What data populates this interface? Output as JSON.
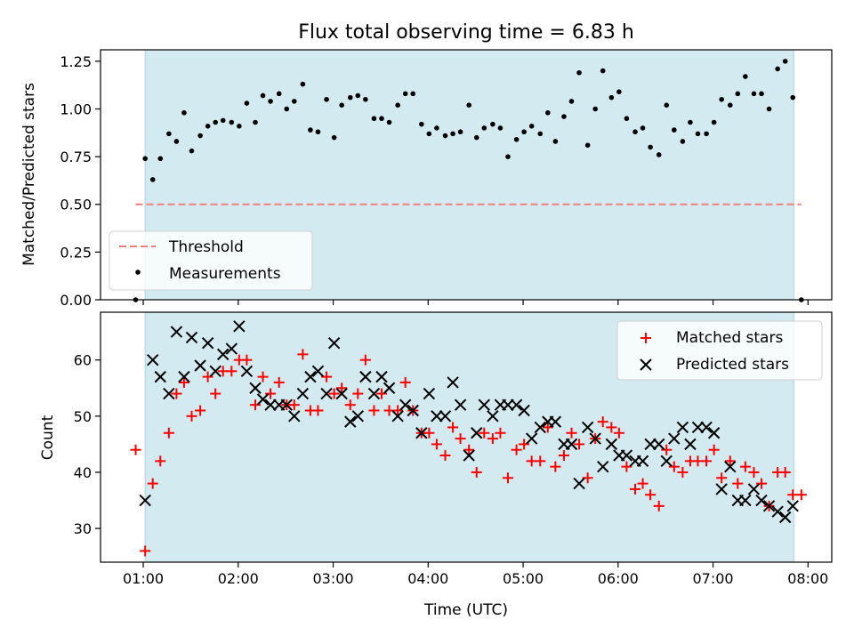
{
  "chart_data": [
    {
      "type": "scatter",
      "title": "Flux total observing time = 6.83 h",
      "xlabel": "",
      "ylabel": "Matched/Predicted stars",
      "xlim": [
        0.55,
        8.25
      ],
      "ylim": [
        0,
        1.31
      ],
      "yticks": [
        0,
        0.25,
        0.5,
        0.75,
        1.0,
        1.25
      ],
      "ytick_labels": [
        "0.00",
        "0.25",
        "0.50",
        "0.75",
        "1.00",
        "1.25"
      ],
      "shaded_span": [
        1.02,
        7.85
      ],
      "threshold": {
        "label": "Threshold",
        "y": 0.5,
        "x_range": [
          0.92,
          7.93
        ],
        "color": "#f08080"
      },
      "series": [
        {
          "name": "Measurements",
          "color": "#000000",
          "points": [
            [
              0.92,
              0.0
            ],
            [
              1.02,
              0.74
            ],
            [
              1.1,
              0.63
            ],
            [
              1.18,
              0.74
            ],
            [
              1.27,
              0.87
            ],
            [
              1.35,
              0.83
            ],
            [
              1.43,
              0.98
            ],
            [
              1.51,
              0.78
            ],
            [
              1.6,
              0.86
            ],
            [
              1.68,
              0.91
            ],
            [
              1.76,
              0.93
            ],
            [
              1.84,
              0.94
            ],
            [
              1.93,
              0.93
            ],
            [
              2.01,
              0.91
            ],
            [
              2.09,
              1.03
            ],
            [
              2.18,
              0.93
            ],
            [
              2.26,
              1.07
            ],
            [
              2.34,
              1.04
            ],
            [
              2.43,
              1.08
            ],
            [
              2.51,
              1.0
            ],
            [
              2.59,
              1.04
            ],
            [
              2.68,
              1.13
            ],
            [
              2.76,
              0.89
            ],
            [
              2.84,
              0.88
            ],
            [
              2.93,
              1.05
            ],
            [
              3.01,
              0.85
            ],
            [
              3.09,
              1.02
            ],
            [
              3.18,
              1.06
            ],
            [
              3.26,
              1.07
            ],
            [
              3.34,
              1.05
            ],
            [
              3.43,
              0.95
            ],
            [
              3.51,
              0.95
            ],
            [
              3.59,
              0.93
            ],
            [
              3.68,
              1.02
            ],
            [
              3.76,
              1.08
            ],
            [
              3.84,
              1.08
            ],
            [
              3.93,
              0.92
            ],
            [
              4.01,
              0.87
            ],
            [
              4.09,
              0.9
            ],
            [
              4.18,
              0.86
            ],
            [
              4.26,
              0.87
            ],
            [
              4.34,
              0.88
            ],
            [
              4.43,
              1.02
            ],
            [
              4.51,
              0.85
            ],
            [
              4.59,
              0.9
            ],
            [
              4.68,
              0.92
            ],
            [
              4.76,
              0.9
            ],
            [
              4.84,
              0.75
            ],
            [
              4.93,
              0.84
            ],
            [
              5.01,
              0.88
            ],
            [
              5.09,
              0.91
            ],
            [
              5.18,
              0.87
            ],
            [
              5.26,
              0.98
            ],
            [
              5.34,
              0.83
            ],
            [
              5.43,
              0.96
            ],
            [
              5.51,
              1.04
            ],
            [
              5.59,
              1.19
            ],
            [
              5.68,
              0.81
            ],
            [
              5.76,
              1.0
            ],
            [
              5.84,
              1.2
            ],
            [
              5.93,
              1.06
            ],
            [
              6.01,
              1.09
            ],
            [
              6.09,
              0.95
            ],
            [
              6.18,
              0.88
            ],
            [
              6.26,
              0.9
            ],
            [
              6.34,
              0.8
            ],
            [
              6.43,
              0.76
            ],
            [
              6.51,
              1.02
            ],
            [
              6.59,
              0.89
            ],
            [
              6.68,
              0.83
            ],
            [
              6.76,
              0.93
            ],
            [
              6.84,
              0.87
            ],
            [
              6.93,
              0.87
            ],
            [
              7.01,
              0.93
            ],
            [
              7.09,
              1.05
            ],
            [
              7.18,
              1.02
            ],
            [
              7.26,
              1.08
            ],
            [
              7.34,
              1.17
            ],
            [
              7.43,
              1.08
            ],
            [
              7.51,
              1.08
            ],
            [
              7.59,
              1.0
            ],
            [
              7.68,
              1.21
            ],
            [
              7.76,
              1.25
            ],
            [
              7.84,
              1.06
            ],
            [
              7.93,
              0.0
            ]
          ]
        }
      ],
      "legend": [
        "Threshold",
        "Measurements"
      ],
      "legend_position": "lower-left"
    },
    {
      "type": "scatter",
      "title": "",
      "xlabel": "Time (UTC)",
      "ylabel": "Count",
      "xlim": [
        0.55,
        8.25
      ],
      "ylim": [
        24,
        68.5
      ],
      "xticks": [
        1,
        2,
        3,
        4,
        5,
        6,
        7,
        8
      ],
      "xtick_labels": [
        "01:00",
        "02:00",
        "03:00",
        "04:00",
        "05:00",
        "06:00",
        "07:00",
        "08:00"
      ],
      "yticks": [
        30,
        40,
        50,
        60
      ],
      "ytick_labels": [
        "30",
        "40",
        "50",
        "60"
      ],
      "shaded_span": [
        1.02,
        7.85
      ],
      "series": [
        {
          "name": "Matched stars",
          "marker": "+",
          "color": "#ff0000",
          "points": [
            [
              0.92,
              44
            ],
            [
              1.02,
              26
            ],
            [
              1.1,
              38
            ],
            [
              1.18,
              42
            ],
            [
              1.27,
              47
            ],
            [
              1.35,
              54
            ],
            [
              1.43,
              56
            ],
            [
              1.51,
              50
            ],
            [
              1.6,
              51
            ],
            [
              1.68,
              57
            ],
            [
              1.76,
              54
            ],
            [
              1.84,
              58
            ],
            [
              1.93,
              58
            ],
            [
              2.01,
              60
            ],
            [
              2.09,
              60
            ],
            [
              2.18,
              52
            ],
            [
              2.26,
              57
            ],
            [
              2.34,
              54
            ],
            [
              2.43,
              56
            ],
            [
              2.51,
              52
            ],
            [
              2.59,
              52
            ],
            [
              2.68,
              61
            ],
            [
              2.76,
              51
            ],
            [
              2.84,
              51
            ],
            [
              2.93,
              57
            ],
            [
              3.01,
              54
            ],
            [
              3.09,
              55
            ],
            [
              3.18,
              52
            ],
            [
              3.26,
              54
            ],
            [
              3.34,
              60
            ],
            [
              3.43,
              51
            ],
            [
              3.51,
              54
            ],
            [
              3.59,
              51
            ],
            [
              3.68,
              51
            ],
            [
              3.76,
              56
            ],
            [
              3.84,
              51
            ],
            [
              3.93,
              47
            ],
            [
              4.01,
              47
            ],
            [
              4.09,
              45
            ],
            [
              4.18,
              43
            ],
            [
              4.26,
              48
            ],
            [
              4.34,
              46
            ],
            [
              4.43,
              44
            ],
            [
              4.51,
              40
            ],
            [
              4.59,
              47
            ],
            [
              4.68,
              46
            ],
            [
              4.76,
              47
            ],
            [
              4.84,
              39
            ],
            [
              4.93,
              44
            ],
            [
              5.01,
              45
            ],
            [
              5.09,
              42
            ],
            [
              5.18,
              42
            ],
            [
              5.26,
              48
            ],
            [
              5.34,
              41
            ],
            [
              5.43,
              43
            ],
            [
              5.51,
              47
            ],
            [
              5.59,
              45
            ],
            [
              5.68,
              39
            ],
            [
              5.76,
              46
            ],
            [
              5.84,
              49
            ],
            [
              5.93,
              48
            ],
            [
              6.01,
              47
            ],
            [
              6.09,
              41
            ],
            [
              6.18,
              37
            ],
            [
              6.26,
              38
            ],
            [
              6.34,
              36
            ],
            [
              6.43,
              34
            ],
            [
              6.51,
              44
            ],
            [
              6.59,
              41
            ],
            [
              6.68,
              40
            ],
            [
              6.76,
              42
            ],
            [
              6.84,
              42
            ],
            [
              6.93,
              42
            ],
            [
              7.01,
              44
            ],
            [
              7.09,
              39
            ],
            [
              7.18,
              42
            ],
            [
              7.26,
              38
            ],
            [
              7.34,
              41
            ],
            [
              7.43,
              40
            ],
            [
              7.51,
              38
            ],
            [
              7.59,
              34
            ],
            [
              7.68,
              40
            ],
            [
              7.76,
              40
            ],
            [
              7.84,
              36
            ],
            [
              7.93,
              36
            ]
          ]
        },
        {
          "name": "Predicted stars",
          "marker": "x",
          "color": "#000000",
          "points": [
            [
              1.02,
              35
            ],
            [
              1.1,
              60
            ],
            [
              1.18,
              57
            ],
            [
              1.27,
              54
            ],
            [
              1.35,
              65
            ],
            [
              1.43,
              57
            ],
            [
              1.51,
              64
            ],
            [
              1.6,
              59
            ],
            [
              1.68,
              63
            ],
            [
              1.76,
              58
            ],
            [
              1.84,
              61
            ],
            [
              1.93,
              62
            ],
            [
              2.01,
              66
            ],
            [
              2.09,
              58
            ],
            [
              2.18,
              55
            ],
            [
              2.26,
              53
            ],
            [
              2.34,
              52
            ],
            [
              2.43,
              52
            ],
            [
              2.51,
              52
            ],
            [
              2.59,
              50
            ],
            [
              2.68,
              54
            ],
            [
              2.76,
              57
            ],
            [
              2.84,
              58
            ],
            [
              2.93,
              54
            ],
            [
              3.01,
              63
            ],
            [
              3.09,
              54
            ],
            [
              3.18,
              49
            ],
            [
              3.26,
              50
            ],
            [
              3.34,
              57
            ],
            [
              3.43,
              54
            ],
            [
              3.51,
              57
            ],
            [
              3.59,
              55
            ],
            [
              3.68,
              50
            ],
            [
              3.76,
              52
            ],
            [
              3.84,
              51
            ],
            [
              3.93,
              47
            ],
            [
              4.01,
              54
            ],
            [
              4.09,
              50
            ],
            [
              4.18,
              50
            ],
            [
              4.26,
              56
            ],
            [
              4.34,
              52
            ],
            [
              4.43,
              43
            ],
            [
              4.51,
              47
            ],
            [
              4.59,
              52
            ],
            [
              4.68,
              50
            ],
            [
              4.76,
              52
            ],
            [
              4.84,
              52
            ],
            [
              4.93,
              52
            ],
            [
              5.01,
              51
            ],
            [
              5.09,
              46
            ],
            [
              5.18,
              48
            ],
            [
              5.26,
              49
            ],
            [
              5.34,
              49
            ],
            [
              5.43,
              45
            ],
            [
              5.51,
              45
            ],
            [
              5.59,
              38
            ],
            [
              5.68,
              48
            ],
            [
              5.76,
              46
            ],
            [
              5.84,
              41
            ],
            [
              5.93,
              45
            ],
            [
              6.01,
              43
            ],
            [
              6.09,
              43
            ],
            [
              6.18,
              42
            ],
            [
              6.26,
              42
            ],
            [
              6.34,
              45
            ],
            [
              6.43,
              45
            ],
            [
              6.51,
              42
            ],
            [
              6.59,
              46
            ],
            [
              6.68,
              48
            ],
            [
              6.76,
              45
            ],
            [
              6.84,
              48
            ],
            [
              6.93,
              48
            ],
            [
              7.01,
              47
            ],
            [
              7.09,
              37
            ],
            [
              7.18,
              41
            ],
            [
              7.26,
              35
            ],
            [
              7.34,
              35
            ],
            [
              7.43,
              37
            ],
            [
              7.51,
              35
            ],
            [
              7.59,
              34
            ],
            [
              7.68,
              33
            ],
            [
              7.76,
              32
            ],
            [
              7.84,
              34
            ]
          ]
        }
      ],
      "legend": [
        "Matched stars",
        "Predicted stars"
      ],
      "legend_position": "upper-right"
    }
  ],
  "colors": {
    "shade": "#d3eaf0",
    "shade_edge": "#a9d4e0"
  }
}
